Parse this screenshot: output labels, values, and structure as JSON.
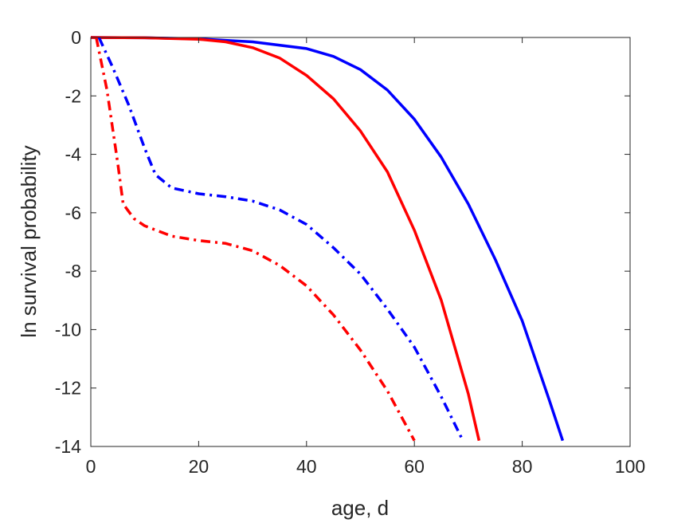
{
  "chart_data": {
    "type": "line",
    "title": "",
    "xlabel": "age, d",
    "ylabel": "ln survival probability",
    "xlim": [
      0,
      100
    ],
    "ylim": [
      -14,
      0
    ],
    "xticks": [
      0,
      20,
      40,
      60,
      80,
      100
    ],
    "yticks": [
      0,
      -2,
      -4,
      -6,
      -8,
      -10,
      -12,
      -14
    ],
    "grid": false,
    "legend": "none",
    "series": [
      {
        "color": "#0000ff",
        "style": "solid",
        "x": [
          0,
          10,
          20,
          30,
          40,
          45,
          50,
          55,
          60,
          65,
          70,
          75,
          80,
          85,
          87.5
        ],
        "y": [
          0,
          -0.01,
          -0.05,
          -0.15,
          -0.38,
          -0.65,
          -1.1,
          -1.8,
          -2.8,
          -4.1,
          -5.7,
          -7.6,
          -9.7,
          -12.4,
          -13.8
        ]
      },
      {
        "color": "#ff0000",
        "style": "solid",
        "x": [
          0,
          10,
          20,
          25,
          30,
          35,
          40,
          45,
          50,
          55,
          60,
          65,
          70,
          72
        ],
        "y": [
          0,
          -0.01,
          -0.06,
          -0.15,
          -0.35,
          -0.7,
          -1.3,
          -2.1,
          -3.2,
          -4.6,
          -6.6,
          -9.0,
          -12.2,
          -13.8
        ]
      },
      {
        "color": "#0000ff",
        "style": "dashdot",
        "x": [
          1.5,
          4,
          7,
          10,
          12,
          15,
          20,
          25,
          30,
          35,
          40,
          45,
          50,
          55,
          60,
          65,
          69
        ],
        "y": [
          0,
          -1.0,
          -2.3,
          -3.8,
          -4.7,
          -5.15,
          -5.35,
          -5.45,
          -5.6,
          -5.9,
          -6.4,
          -7.2,
          -8.1,
          -9.3,
          -10.6,
          -12.3,
          -13.8
        ]
      },
      {
        "color": "#ff0000",
        "style": "dashdot",
        "x": [
          1,
          3,
          5,
          6,
          8,
          10,
          15,
          20,
          25,
          30,
          35,
          40,
          45,
          50,
          55,
          60
        ],
        "y": [
          0,
          -1.8,
          -4.3,
          -5.7,
          -6.2,
          -6.45,
          -6.8,
          -6.95,
          -7.05,
          -7.3,
          -7.8,
          -8.5,
          -9.5,
          -10.7,
          -12.1,
          -13.8
        ]
      }
    ]
  }
}
